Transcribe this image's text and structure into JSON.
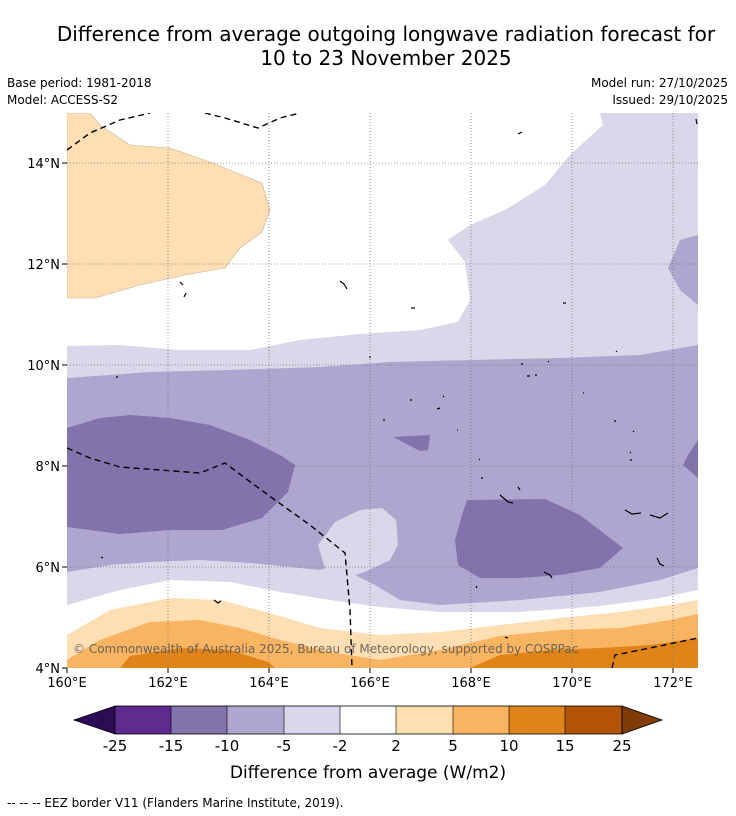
{
  "title": {
    "line1": "Difference from average outgoing longwave radiation forecast for",
    "line2": "10 to 23 November 2025"
  },
  "meta": {
    "base_period": "Base period: 1981-2018",
    "model": "Model: ACCESS-S2",
    "model_run": "Model run: 27/10/2025",
    "issued": "Issued: 29/10/2025"
  },
  "map": {
    "lon_ticks": [
      "160°E",
      "162°E",
      "164°E",
      "166°E",
      "168°E",
      "170°E",
      "172°E"
    ],
    "lat_ticks": [
      "14°N",
      "12°N",
      "10°N",
      "8°N",
      "6°N",
      "4°N"
    ],
    "copyright": "© Commonwealth of Australia 2025, Bureau of Meteorology, supported by COSPPac"
  },
  "colorbar": {
    "ticks": [
      "-25",
      "-15",
      "-10",
      "-5",
      "-2",
      "2",
      "5",
      "10",
      "15",
      "25"
    ],
    "label": "Difference from average (W/m2)",
    "colors": {
      "below": "#2d0b55",
      "c1": "#5e2b8f",
      "c2": "#8173ab",
      "c3": "#aea6cf",
      "c4": "#d8d8ea",
      "c5": "#ffffff",
      "c6": "#fddfb3",
      "c7": "#f8b461",
      "c8": "#e08419",
      "c9": "#b35409",
      "above": "#7f3b08"
    }
  },
  "legend_note": "--  --  -- EEZ border V11 (Flanders Marine Institute, 2019)."
}
